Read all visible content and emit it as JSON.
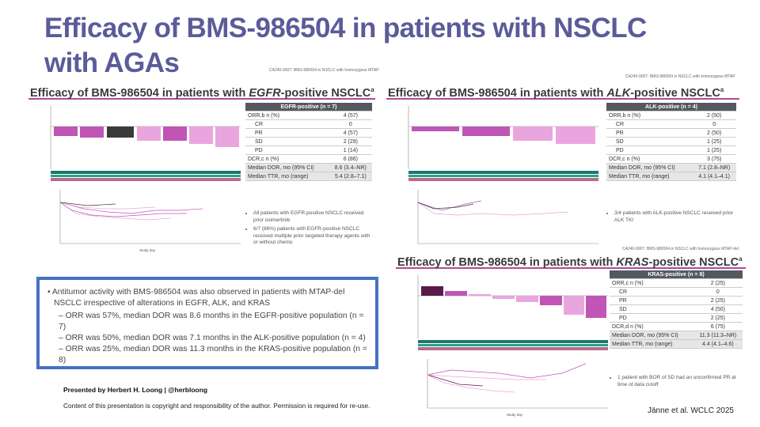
{
  "slide": {
    "title": "Efficacy of BMS-986504 in patients with NSCLC with AGAs"
  },
  "egfr": {
    "title_pre": "Efficacy of BMS-986504 in patients with ",
    "title_em": "EGFR",
    "title_post": "-positive NSCLC",
    "title_sup": "a",
    "table_header": "EGFR-positive (n = 7)",
    "rows": [
      {
        "label": "ORR,b n (%)",
        "value": "4 (57)"
      },
      {
        "label": "CR",
        "value": "0",
        "indent": true
      },
      {
        "label": "PR",
        "value": "4 (57)",
        "indent": true
      },
      {
        "label": "SD",
        "value": "2 (29)",
        "indent": true
      },
      {
        "label": "PD",
        "value": "1 (14)",
        "indent": true
      },
      {
        "label": "DCR,c n (%)",
        "value": "6 (86)"
      },
      {
        "label": "Median DOR, mo (95% CI)",
        "value": "8.6 (3.4–NR)",
        "shade": true
      },
      {
        "label": "Median TTR, mo (range)",
        "value": "5.4 (2.8–7.1)",
        "shade": true
      }
    ],
    "bullet_1": "All patients with EGFR-positive NSCLC received prior osimertinib",
    "bullet_2": "6/7 (86%) patients with EGFR-positive NSCLC received multiple prior targeted therapy agents with or without chemo",
    "xlabel": "Study day"
  },
  "alk": {
    "title_pre": "Efficacy of BMS-986504 in patients with ",
    "title_em": "ALK",
    "title_post": "-positive NSCLC",
    "title_sup": "a",
    "caption": "CA240-0007: BMS-986504 in NSCLC with homozygous MTAP",
    "table_header": "ALK-positive (n = 4)",
    "rows": [
      {
        "label": "ORR,b n (%)",
        "value": "2 (50)"
      },
      {
        "label": "CR",
        "value": "0",
        "indent": true
      },
      {
        "label": "PR",
        "value": "2 (50)",
        "indent": true
      },
      {
        "label": "SD",
        "value": "1 (25)",
        "indent": true
      },
      {
        "label": "PD",
        "value": "1 (25)",
        "indent": true
      },
      {
        "label": "DCR,c n (%)",
        "value": "3 (75)"
      },
      {
        "label": "Median DOR, mo (95% CI)",
        "value": "7.1 (2.8–NR)",
        "shade": true
      },
      {
        "label": "Median TTR, mo (range)",
        "value": "4.1 (4.1–4.1)",
        "shade": true
      }
    ],
    "bullet_1": "3/4 patients with ALK-positive NSCLC received prior ALK TKI"
  },
  "kras": {
    "title_pre": "Efficacy of BMS-986504 in patients with ",
    "title_em": "KRAS",
    "title_post": "-positive NSCLC",
    "title_sup": "a",
    "caption": "CA240-0007: BMS-986504 in NSCLC with homozygous MTAP-del",
    "table_header": "KRAS-positive (n = 8)",
    "rows": [
      {
        "label": "ORR,c n (%)",
        "value": "2 (25)"
      },
      {
        "label": "CR",
        "value": "0",
        "indent": true
      },
      {
        "label": "PR",
        "value": "2 (25)",
        "indent": true
      },
      {
        "label": "SD",
        "value": "4 (50)",
        "indent": true
      },
      {
        "label": "PD",
        "value": "2 (25)",
        "indent": true
      },
      {
        "label": "DCR,d n (%)",
        "value": "6 (75)"
      },
      {
        "label": "Median DOR, mo (95% CI)",
        "value": "11.3 (11.3–NR)",
        "shade": true
      },
      {
        "label": "Median TTR, mo (range)",
        "value": "4.4 (4.1–4.6)",
        "shade": true
      }
    ],
    "bullet_1": "1 patient with BOR of SD had an unconfirmed PR at time of data cutoff",
    "xlabel": "Study day"
  },
  "egfr_caption": "CA240-0007: BMS-986504 in NSCLC with homozygous MTAP",
  "summary": {
    "main": "Antitumor activity with BMS-986504 was also observed in patients with MTAP-del NSCLC irrespective of alterations in EGFR, ALK, and KRAS",
    "items": [
      "ORR was 57%, median DOR was 8.6 months in the EGFR-positive population (n = 7)",
      "ORR was 50%, median DOR was 7.1 months in the ALK-positive population (n = 4)",
      "ORR was 25%, median DOR was 11.3 months in the KRAS-positive population (n = 8)"
    ]
  },
  "footer": {
    "presenter": "Presented by Herbert H. Loong | @herbloong",
    "copyright": "Content of this presentation is copyright and responsibility of the author. Permission is required for re-use.",
    "citation": "Jänne et al. WCLC 2025"
  },
  "colors": {
    "title": "#5b5b9a",
    "accent_line": "#b04a9a",
    "cr": "#5a1a4a",
    "pr": "#c055b5",
    "sd": "#e9a5dd",
    "pd": "#3a3a3a",
    "blue_border": "#4472c4"
  }
}
